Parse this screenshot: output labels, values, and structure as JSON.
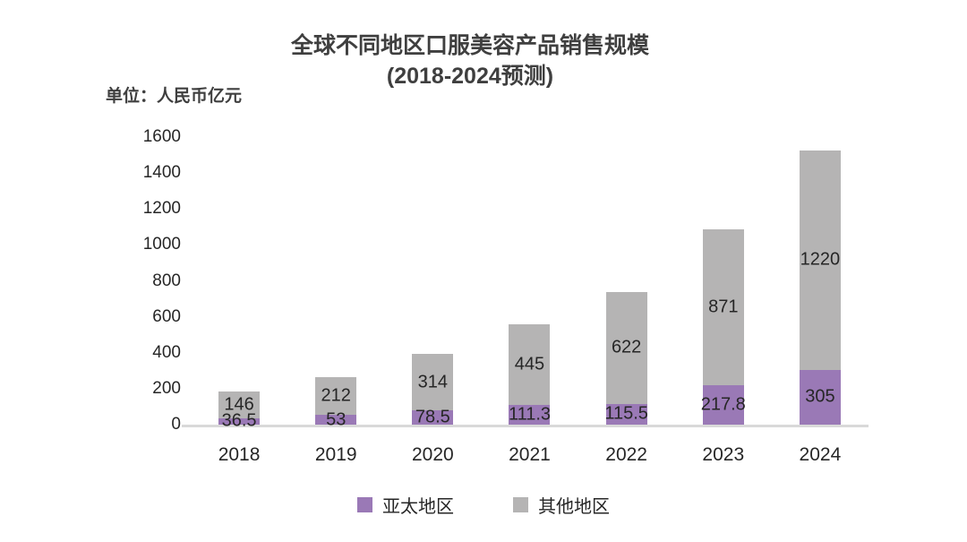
{
  "title": {
    "line1": "全球不同地区口服美容产品销售规模",
    "line2": "(2018-2024预测)"
  },
  "unit_label": "单位：人民币亿元",
  "colors": {
    "apac": "#9a79b6",
    "other": "#b5b4b4",
    "axis_line": "#d9d9d9",
    "title_text": "#3f3f3f",
    "label_text": "#262626"
  },
  "legend": {
    "items": [
      {
        "label": "亚太地区",
        "color": "#9a79b6"
      },
      {
        "label": "其他地区",
        "color": "#b5b4b4"
      }
    ]
  },
  "chart_data": {
    "type": "bar",
    "stacked": true,
    "title": "全球不同地区口服美容产品销售规模(2018-2024预测)",
    "ylabel": "单位：人民币亿元",
    "categories": [
      "2018",
      "2019",
      "2020",
      "2021",
      "2022",
      "2023",
      "2024"
    ],
    "series": [
      {
        "name": "亚太地区",
        "color": "#9a79b6",
        "values": [
          36.5,
          53,
          78.5,
          111.3,
          115.5,
          217.8,
          305
        ]
      },
      {
        "name": "其他地区",
        "color": "#b5b4b4",
        "values": [
          146,
          212,
          314,
          445,
          622,
          871,
          1220
        ]
      }
    ],
    "totals": [
      182.5,
      265,
      392.5,
      556.3,
      737.5,
      1088.8,
      1525
    ],
    "ylim": [
      0,
      1600
    ],
    "yticks": [
      0,
      200,
      400,
      600,
      800,
      1000,
      1200,
      1400,
      1600
    ],
    "grid": false,
    "data_labels": true,
    "legend_position": "bottom"
  }
}
